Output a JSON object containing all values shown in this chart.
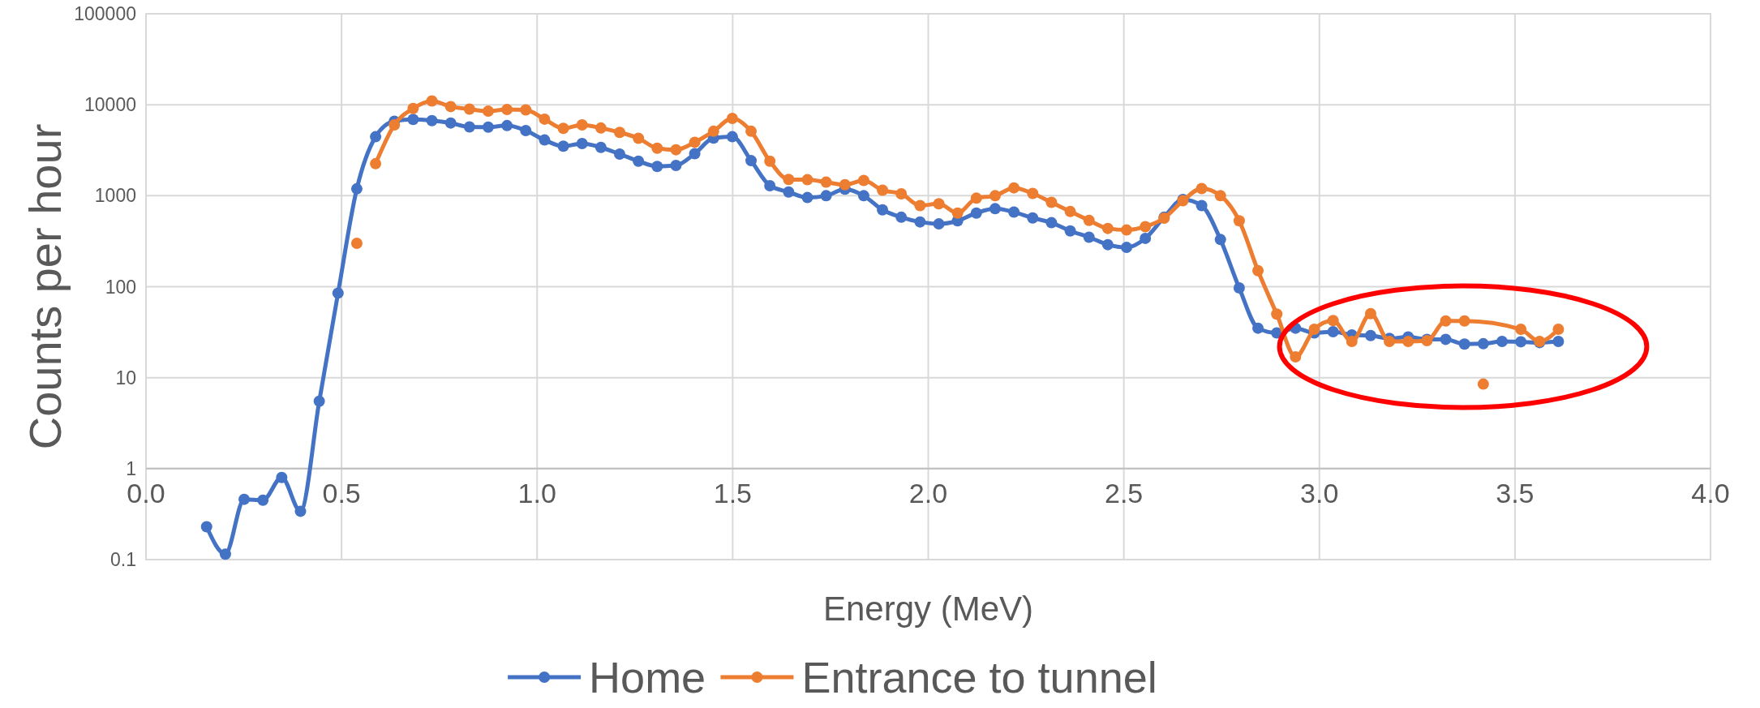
{
  "chart_data": {
    "type": "line",
    "xlabel": "Energy (MeV)",
    "ylabel": "Counts per hour",
    "xlim": [
      0,
      4
    ],
    "xticks": [
      {
        "value": 0,
        "label": "0.0"
      },
      {
        "value": 0.5,
        "label": "0.5"
      },
      {
        "value": 1,
        "label": "1.0"
      },
      {
        "value": 1.5,
        "label": "1.5"
      },
      {
        "value": 2,
        "label": "2.0"
      },
      {
        "value": 2.5,
        "label": "2.5"
      },
      {
        "value": 3,
        "label": "3.0"
      },
      {
        "value": 3.5,
        "label": "3.5"
      },
      {
        "value": 4,
        "label": "4.0"
      }
    ],
    "ylim": [
      0.1,
      100000
    ],
    "yticks": [
      0.1,
      1,
      10,
      100,
      1000,
      10000,
      100000
    ],
    "log": "y",
    "grid": true,
    "legend": "bottom",
    "marker": "circle",
    "line_style": "solid",
    "series": [
      {
        "name": "Home",
        "color": "#4472c4",
        "x": [
          0.155,
          0.203,
          0.251,
          0.299,
          0.347,
          0.395,
          0.443,
          0.491,
          0.539,
          0.587,
          0.635,
          0.683,
          0.731,
          0.779,
          0.827,
          0.875,
          0.923,
          0.971,
          1.019,
          1.067,
          1.115,
          1.163,
          1.211,
          1.259,
          1.307,
          1.355,
          1.403,
          1.451,
          1.499,
          1.547,
          1.595,
          1.643,
          1.691,
          1.739,
          1.787,
          1.835,
          1.883,
          1.931,
          1.979,
          2.027,
          2.075,
          2.123,
          2.171,
          2.219,
          2.267,
          2.315,
          2.363,
          2.411,
          2.459,
          2.507,
          2.555,
          2.603,
          2.651,
          2.699,
          2.747,
          2.795,
          2.843,
          2.891,
          2.939,
          2.987,
          3.035,
          3.083,
          3.131,
          3.179,
          3.227,
          3.275,
          3.323,
          3.371,
          3.419,
          3.467,
          3.515,
          3.563,
          3.611
        ],
        "values": [
          0.23,
          0.115,
          0.46,
          0.45,
          0.8,
          0.34,
          5.5,
          85,
          1190,
          4450,
          6600,
          6900,
          6700,
          6300,
          5700,
          5670,
          5900,
          5200,
          4100,
          3500,
          3750,
          3400,
          2870,
          2400,
          2100,
          2150,
          2900,
          4300,
          4450,
          2430,
          1290,
          1100,
          955,
          1000,
          1180,
          1000,
          700,
          580,
          515,
          490,
          530,
          645,
          720,
          660,
          570,
          505,
          410,
          350,
          290,
          270,
          340,
          580,
          910,
          780,
          330,
          97,
          35,
          31,
          35,
          31,
          32,
          29.5,
          29,
          27,
          28,
          26.4,
          26.4,
          23.4,
          23.6,
          25,
          24.8,
          24.3,
          25
        ]
      },
      {
        "name": "Entrance to tunnel",
        "color": "#ed7d31",
        "x": [
          0.587,
          0.635,
          0.683,
          0.731,
          0.779,
          0.827,
          0.875,
          0.923,
          0.971,
          1.019,
          1.067,
          1.115,
          1.163,
          1.211,
          1.259,
          1.307,
          1.355,
          1.403,
          1.451,
          1.499,
          1.547,
          1.595,
          1.643,
          1.691,
          1.739,
          1.787,
          1.835,
          1.883,
          1.931,
          1.979,
          2.027,
          2.075,
          2.123,
          2.171,
          2.219,
          2.267,
          2.315,
          2.363,
          2.411,
          2.459,
          2.507,
          2.555,
          2.603,
          2.651,
          2.699,
          2.747,
          2.795,
          2.843,
          2.891,
          2.939,
          2.987,
          3.035,
          3.083,
          3.131,
          3.179,
          3.227,
          3.275,
          3.323,
          3.371,
          3.515,
          3.563,
          3.611
        ],
        "values": [
          2250,
          6000,
          9100,
          11000,
          9550,
          8950,
          8500,
          8850,
          8780,
          6950,
          5500,
          6000,
          5550,
          4970,
          4280,
          3330,
          3200,
          3870,
          5110,
          7080,
          5110,
          2400,
          1510,
          1500,
          1410,
          1320,
          1470,
          1150,
          1050,
          780,
          815,
          645,
          940,
          1000,
          1220,
          1060,
          845,
          670,
          535,
          437,
          420,
          457,
          566,
          880,
          1200,
          1000,
          530,
          150,
          50,
          16.9,
          34,
          42.4,
          25,
          50.6,
          25,
          25,
          25.5,
          42,
          42,
          34,
          25,
          34
        ]
      },
      {
        "type": "scatter",
        "color": "#ed7d31",
        "x": [
          0.539,
          3.419
        ],
        "values": [
          300,
          8.5
        ]
      }
    ]
  }
}
